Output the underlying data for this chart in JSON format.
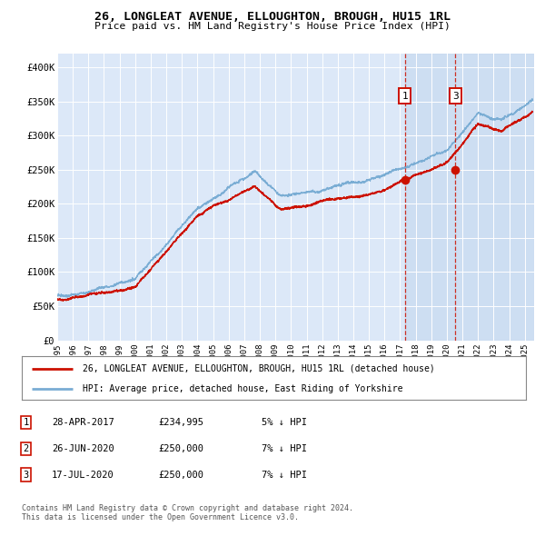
{
  "title": "26, LONGLEAT AVENUE, ELLOUGHTON, BROUGH, HU15 1RL",
  "subtitle": "Price paid vs. HM Land Registry's House Price Index (HPI)",
  "background_color": "#ffffff",
  "plot_bg_color": "#dce8f8",
  "ylim": [
    0,
    420000
  ],
  "yticks": [
    0,
    50000,
    100000,
    150000,
    200000,
    250000,
    300000,
    350000,
    400000
  ],
  "ytick_labels": [
    "£0",
    "£50K",
    "£100K",
    "£150K",
    "£200K",
    "£250K",
    "£300K",
    "£350K",
    "£400K"
  ],
  "xtick_years": [
    1995,
    1996,
    1997,
    1998,
    1999,
    2000,
    2001,
    2002,
    2003,
    2004,
    2005,
    2006,
    2007,
    2008,
    2009,
    2010,
    2011,
    2012,
    2013,
    2014,
    2015,
    2016,
    2017,
    2018,
    2019,
    2020,
    2021,
    2022,
    2023,
    2024,
    2025
  ],
  "hpi_color": "#7aadd4",
  "property_color": "#cc1100",
  "t1_x": 2017.32,
  "t1_price": 234995,
  "t3_x": 2020.54,
  "t3_price": 250000,
  "shade_start": 2017.32,
  "shade_end": 2025.6,
  "shade_color": "#c8daf0",
  "legend_line1": "26, LONGLEAT AVENUE, ELLOUGHTON, BROUGH, HU15 1RL (detached house)",
  "legend_line2": "HPI: Average price, detached house, East Riding of Yorkshire",
  "table_rows": [
    {
      "num": "1",
      "date": "28-APR-2017",
      "price": "£234,995",
      "hpi": "5% ↓ HPI"
    },
    {
      "num": "2",
      "date": "26-JUN-2020",
      "price": "£250,000",
      "hpi": "7% ↓ HPI"
    },
    {
      "num": "3",
      "date": "17-JUL-2020",
      "price": "£250,000",
      "hpi": "7% ↓ HPI"
    }
  ],
  "footnote": "Contains HM Land Registry data © Crown copyright and database right 2024.\nThis data is licensed under the Open Government Licence v3.0."
}
